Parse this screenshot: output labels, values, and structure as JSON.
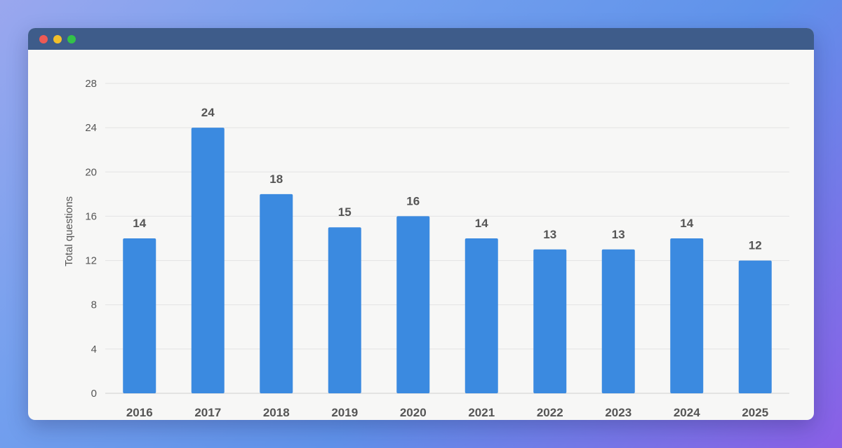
{
  "window": {
    "controls": [
      "close",
      "minimize",
      "maximize"
    ],
    "colors": {
      "titlebar": "#3e5c8a",
      "close": "#ee5a55",
      "minimize": "#f2bf2b",
      "maximize": "#33c249"
    }
  },
  "chart_data": {
    "type": "bar",
    "title": "",
    "xlabel": "",
    "ylabel": "Total questions",
    "categories": [
      "2016",
      "2017",
      "2018",
      "2019",
      "2020",
      "2021",
      "2022",
      "2023",
      "2024",
      "2025"
    ],
    "values": [
      14,
      24,
      18,
      15,
      16,
      14,
      13,
      13,
      14,
      12
    ],
    "data_labels": [
      "14",
      "24",
      "18",
      "15",
      "16",
      "14",
      "13",
      "13",
      "14",
      "12"
    ],
    "ylim": [
      0,
      28
    ],
    "yticks": [
      "0",
      "4",
      "8",
      "12",
      "16",
      "20",
      "24",
      "28"
    ],
    "grid": true,
    "legend": "none",
    "bar_color": "#3b8ae0"
  }
}
